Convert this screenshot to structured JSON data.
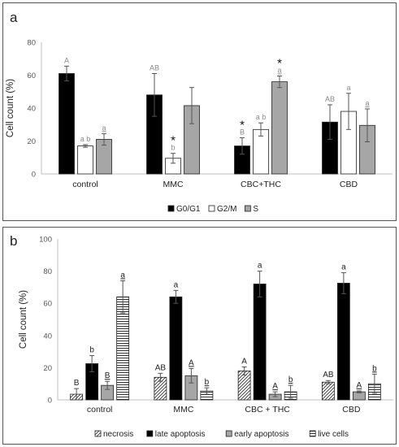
{
  "chart_data": [
    {
      "panel_label": "a",
      "type": "bar",
      "ylabel": "Cell count (%)",
      "ylim": [
        0,
        80
      ],
      "yticks": [
        0,
        20,
        40,
        60,
        80
      ],
      "categories": [
        "control",
        "MMC",
        "CBC+THC",
        "CBD"
      ],
      "legend_position": "bottom",
      "series": [
        {
          "name": "G0/G1",
          "fill": "#000000",
          "pattern": "solid",
          "values": [
            61,
            48,
            17,
            31.5
          ],
          "errors": [
            4.5,
            13,
            5,
            10.5
          ],
          "labels": [
            [
              "A"
            ],
            [
              "AB"
            ],
            [
              "*",
              "B"
            ],
            [
              "AB"
            ]
          ]
        },
        {
          "name": "G2/M",
          "fill": "#ffffff",
          "pattern": "solid",
          "values": [
            17,
            9.5,
            27,
            38
          ],
          "errors": [
            0.8,
            3,
            4,
            11
          ],
          "labels": [
            [
              "a b"
            ],
            [
              "*",
              "b"
            ],
            [
              "a b"
            ],
            [
              "a"
            ]
          ]
        },
        {
          "name": "S",
          "fill": "#a6a6a6",
          "pattern": "solid",
          "values": [
            21,
            41.5,
            56,
            29.5
          ],
          "errors": [
            3.5,
            11,
            3.5,
            10
          ],
          "labels": [
            [
              "a"
            ],
            [],
            [
              "*",
              "a"
            ],
            [
              "a"
            ]
          ]
        }
      ]
    },
    {
      "panel_label": "b",
      "type": "bar",
      "ylabel": "Cell count (%)",
      "ylim": [
        0,
        100
      ],
      "yticks": [
        0,
        20,
        40,
        60,
        80,
        100
      ],
      "categories": [
        "control",
        "MMC",
        "CBC + THC",
        "CBD"
      ],
      "legend_position": "bottom",
      "series": [
        {
          "name": "necrosis",
          "fill": "#ffffff",
          "pattern": "diagonal",
          "values": [
            3.5,
            14,
            18,
            11
          ],
          "errors": [
            3.5,
            2.5,
            2.5,
            1
          ],
          "labels": [
            "B",
            "AB",
            "A",
            "AB"
          ]
        },
        {
          "name": "late apoptosis",
          "fill": "#000000",
          "pattern": "solid",
          "values": [
            22.5,
            64,
            72,
            72.5
          ],
          "errors": [
            5,
            4,
            8,
            6.5
          ],
          "labels": [
            "b",
            "a",
            "a",
            "a"
          ]
        },
        {
          "name": "early apoptosis",
          "fill": "#a6a6a6",
          "pattern": "solid",
          "values": [
            9,
            15,
            3.5,
            5
          ],
          "errors": [
            2.5,
            4.5,
            1.5,
            0.6
          ],
          "labels": [
            "B",
            "A",
            "A",
            "A"
          ]
        },
        {
          "name": "live cells",
          "fill": "#ffffff",
          "pattern": "horizontal",
          "values": [
            64,
            5.5,
            5,
            10
          ],
          "errors": [
            10,
            2,
            4,
            6
          ],
          "labels": [
            "a",
            "b",
            "b",
            "b"
          ]
        }
      ]
    }
  ]
}
